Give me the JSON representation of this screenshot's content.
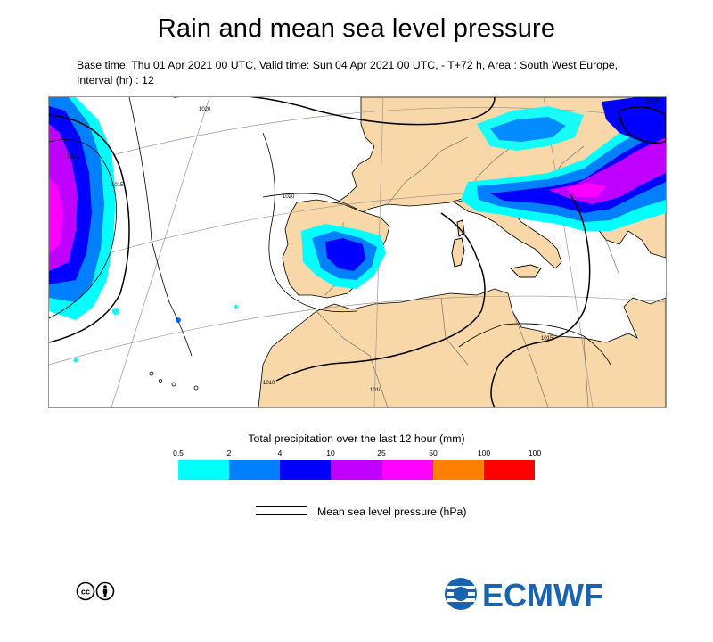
{
  "title": "Rain and mean sea level pressure",
  "subtitle": "Base time: Thu 01 Apr 2021 00 UTC, Valid time: Sun 04 Apr 2021 00 UTC, - T+72 h, Area : South West Europe, Interval (hr) : 12",
  "map": {
    "isobar_labels": [
      "1015",
      "1020",
      "1020",
      "1015",
      "1010",
      "1015",
      "1010",
      "1015"
    ],
    "colors": {
      "sea": "#ffffff",
      "land": "#f8d8a8",
      "coast": "#000000",
      "border": "#666666",
      "graticule": "#a09890"
    }
  },
  "legend": {
    "title": "Total precipitation over the last 12 hour (mm)",
    "ticks": [
      "0.5",
      "2",
      "4",
      "10",
      "25",
      "50",
      "100",
      "100"
    ],
    "colors": [
      "#00ffff",
      "#0080ff",
      "#0000ff",
      "#c000ff",
      "#ff00ff",
      "#ff8000",
      "#ff0000"
    ]
  },
  "mslp_key_label": "Mean sea level pressure (hPa)",
  "logo_text": "ECMWF",
  "logo_color": "#1a63b0",
  "license_icon": "creative-commons-by-icon"
}
